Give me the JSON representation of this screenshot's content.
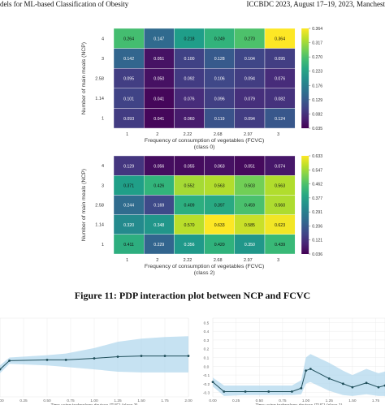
{
  "header": {
    "left": "dels for ML-based Classification of Obesity",
    "right": "ICCBDC 2023, August 17–19, 2023, Manchest"
  },
  "figure_caption": "Figure 11: PDP interaction plot between NCP and FCVC",
  "chart_data": [
    {
      "type": "heatmap",
      "title": "class 0",
      "xlabel": "Frequency of consumption of vegetables (FCVC)",
      "ylabel": "Number of main meals (NCP)",
      "x": [
        "1",
        "2",
        "2.22",
        "2.68",
        "2.97",
        "3"
      ],
      "y": [
        "4",
        "3",
        "2.58",
        "1.14",
        "1"
      ],
      "values": [
        [
          0.264,
          0.147,
          0.218,
          0.249,
          0.27,
          0.364
        ],
        [
          0.142,
          0.051,
          0.1,
          0.128,
          0.104,
          0.095
        ],
        [
          0.095,
          0.05,
          0.092,
          0.106,
          0.094,
          0.076
        ],
        [
          0.101,
          0.041,
          0.076,
          0.096,
          0.079,
          0.082
        ],
        [
          0.093,
          0.041,
          0.06,
          0.119,
          0.094,
          0.124
        ]
      ],
      "colorbar_ticks": [
        "0.364",
        "0.317",
        "0.270",
        "0.223",
        "0.176",
        "0.129",
        "0.082",
        "0.035"
      ],
      "vmin": 0.035,
      "vmax": 0.364
    },
    {
      "type": "heatmap",
      "title": "class 2",
      "xlabel": "Frequency of consumption of vegetables (FCVC)",
      "ylabel": "Number of main meals (NCP)",
      "x": [
        "1",
        "2",
        "2.22",
        "2.68",
        "2.97",
        "3"
      ],
      "y": [
        "4",
        "3",
        "2.58",
        "1.14",
        "1"
      ],
      "values": [
        [
          0.129,
          0.056,
          0.055,
          0.063,
          0.051,
          0.074
        ],
        [
          0.371,
          0.426,
          0.552,
          0.563,
          0.503,
          0.563
        ],
        [
          0.244,
          0.169,
          0.409,
          0.397,
          0.459,
          0.56
        ],
        [
          0.32,
          0.348,
          0.57,
          0.633,
          0.585,
          0.623
        ],
        [
          0.411,
          0.229,
          0.356,
          0.42,
          0.35,
          0.439
        ]
      ],
      "colorbar_ticks": [
        "0.633",
        "0.547",
        "0.462",
        "0.377",
        "0.291",
        "0.206",
        "0.121",
        "0.036"
      ],
      "vmin": 0.036,
      "vmax": 0.633
    },
    {
      "type": "line",
      "xlabel": "Time using technology devices (TUE) (class 3)",
      "x_ticks": [
        "0.00",
        "0.25",
        "0.50",
        "0.75",
        "1.00",
        "1.25",
        "1.50",
        "1.75",
        "2.00"
      ],
      "y_ticks": [],
      "xlim": [
        0,
        2
      ],
      "ylim": [
        0,
        1
      ],
      "x": [
        0,
        0.1,
        0.5,
        0.7,
        1.0,
        1.25,
        1.5,
        1.75,
        2.0
      ],
      "y": [
        0.35,
        0.46,
        0.47,
        0.47,
        0.49,
        0.51,
        0.52,
        0.52,
        0.52
      ],
      "band_low": [
        0.3,
        0.42,
        0.4,
        0.38,
        0.35,
        0.32,
        0.31,
        0.31,
        0.31
      ],
      "band_high": [
        0.4,
        0.5,
        0.53,
        0.55,
        0.62,
        0.7,
        0.74,
        0.76,
        0.77
      ]
    },
    {
      "type": "line",
      "xlabel": "Time using technology devices (TUE) (class 1)",
      "x_ticks": [
        "0.00",
        "0.25",
        "0.50",
        "0.75",
        "1.00",
        "1.25",
        "1.50",
        "1.75"
      ],
      "y_ticks": [
        "0.5",
        "0.4",
        "0.3",
        "0.2",
        "0.1",
        "0.0",
        "-0.1",
        "-0.2",
        "-0.3"
      ],
      "xlim": [
        0,
        1.85
      ],
      "ylim": [
        -0.35,
        0.55
      ],
      "x": [
        0.0,
        0.12,
        0.35,
        0.6,
        0.85,
        0.95,
        1.0,
        1.05,
        1.25,
        1.4,
        1.5,
        1.65,
        1.78,
        1.85
      ],
      "y": [
        -0.18,
        -0.29,
        -0.29,
        -0.29,
        -0.29,
        -0.25,
        -0.05,
        -0.03,
        -0.14,
        -0.2,
        -0.24,
        -0.19,
        -0.24,
        -0.22
      ],
      "band_low": [
        -0.23,
        -0.34,
        -0.33,
        -0.33,
        -0.33,
        -0.32,
        -0.2,
        -0.18,
        -0.28,
        -0.33,
        -0.34,
        -0.32,
        -0.34,
        -0.34
      ],
      "band_high": [
        -0.13,
        -0.22,
        -0.22,
        -0.22,
        -0.22,
        -0.16,
        0.1,
        0.14,
        0.04,
        -0.05,
        -0.1,
        -0.03,
        -0.08,
        -0.06
      ]
    }
  ]
}
